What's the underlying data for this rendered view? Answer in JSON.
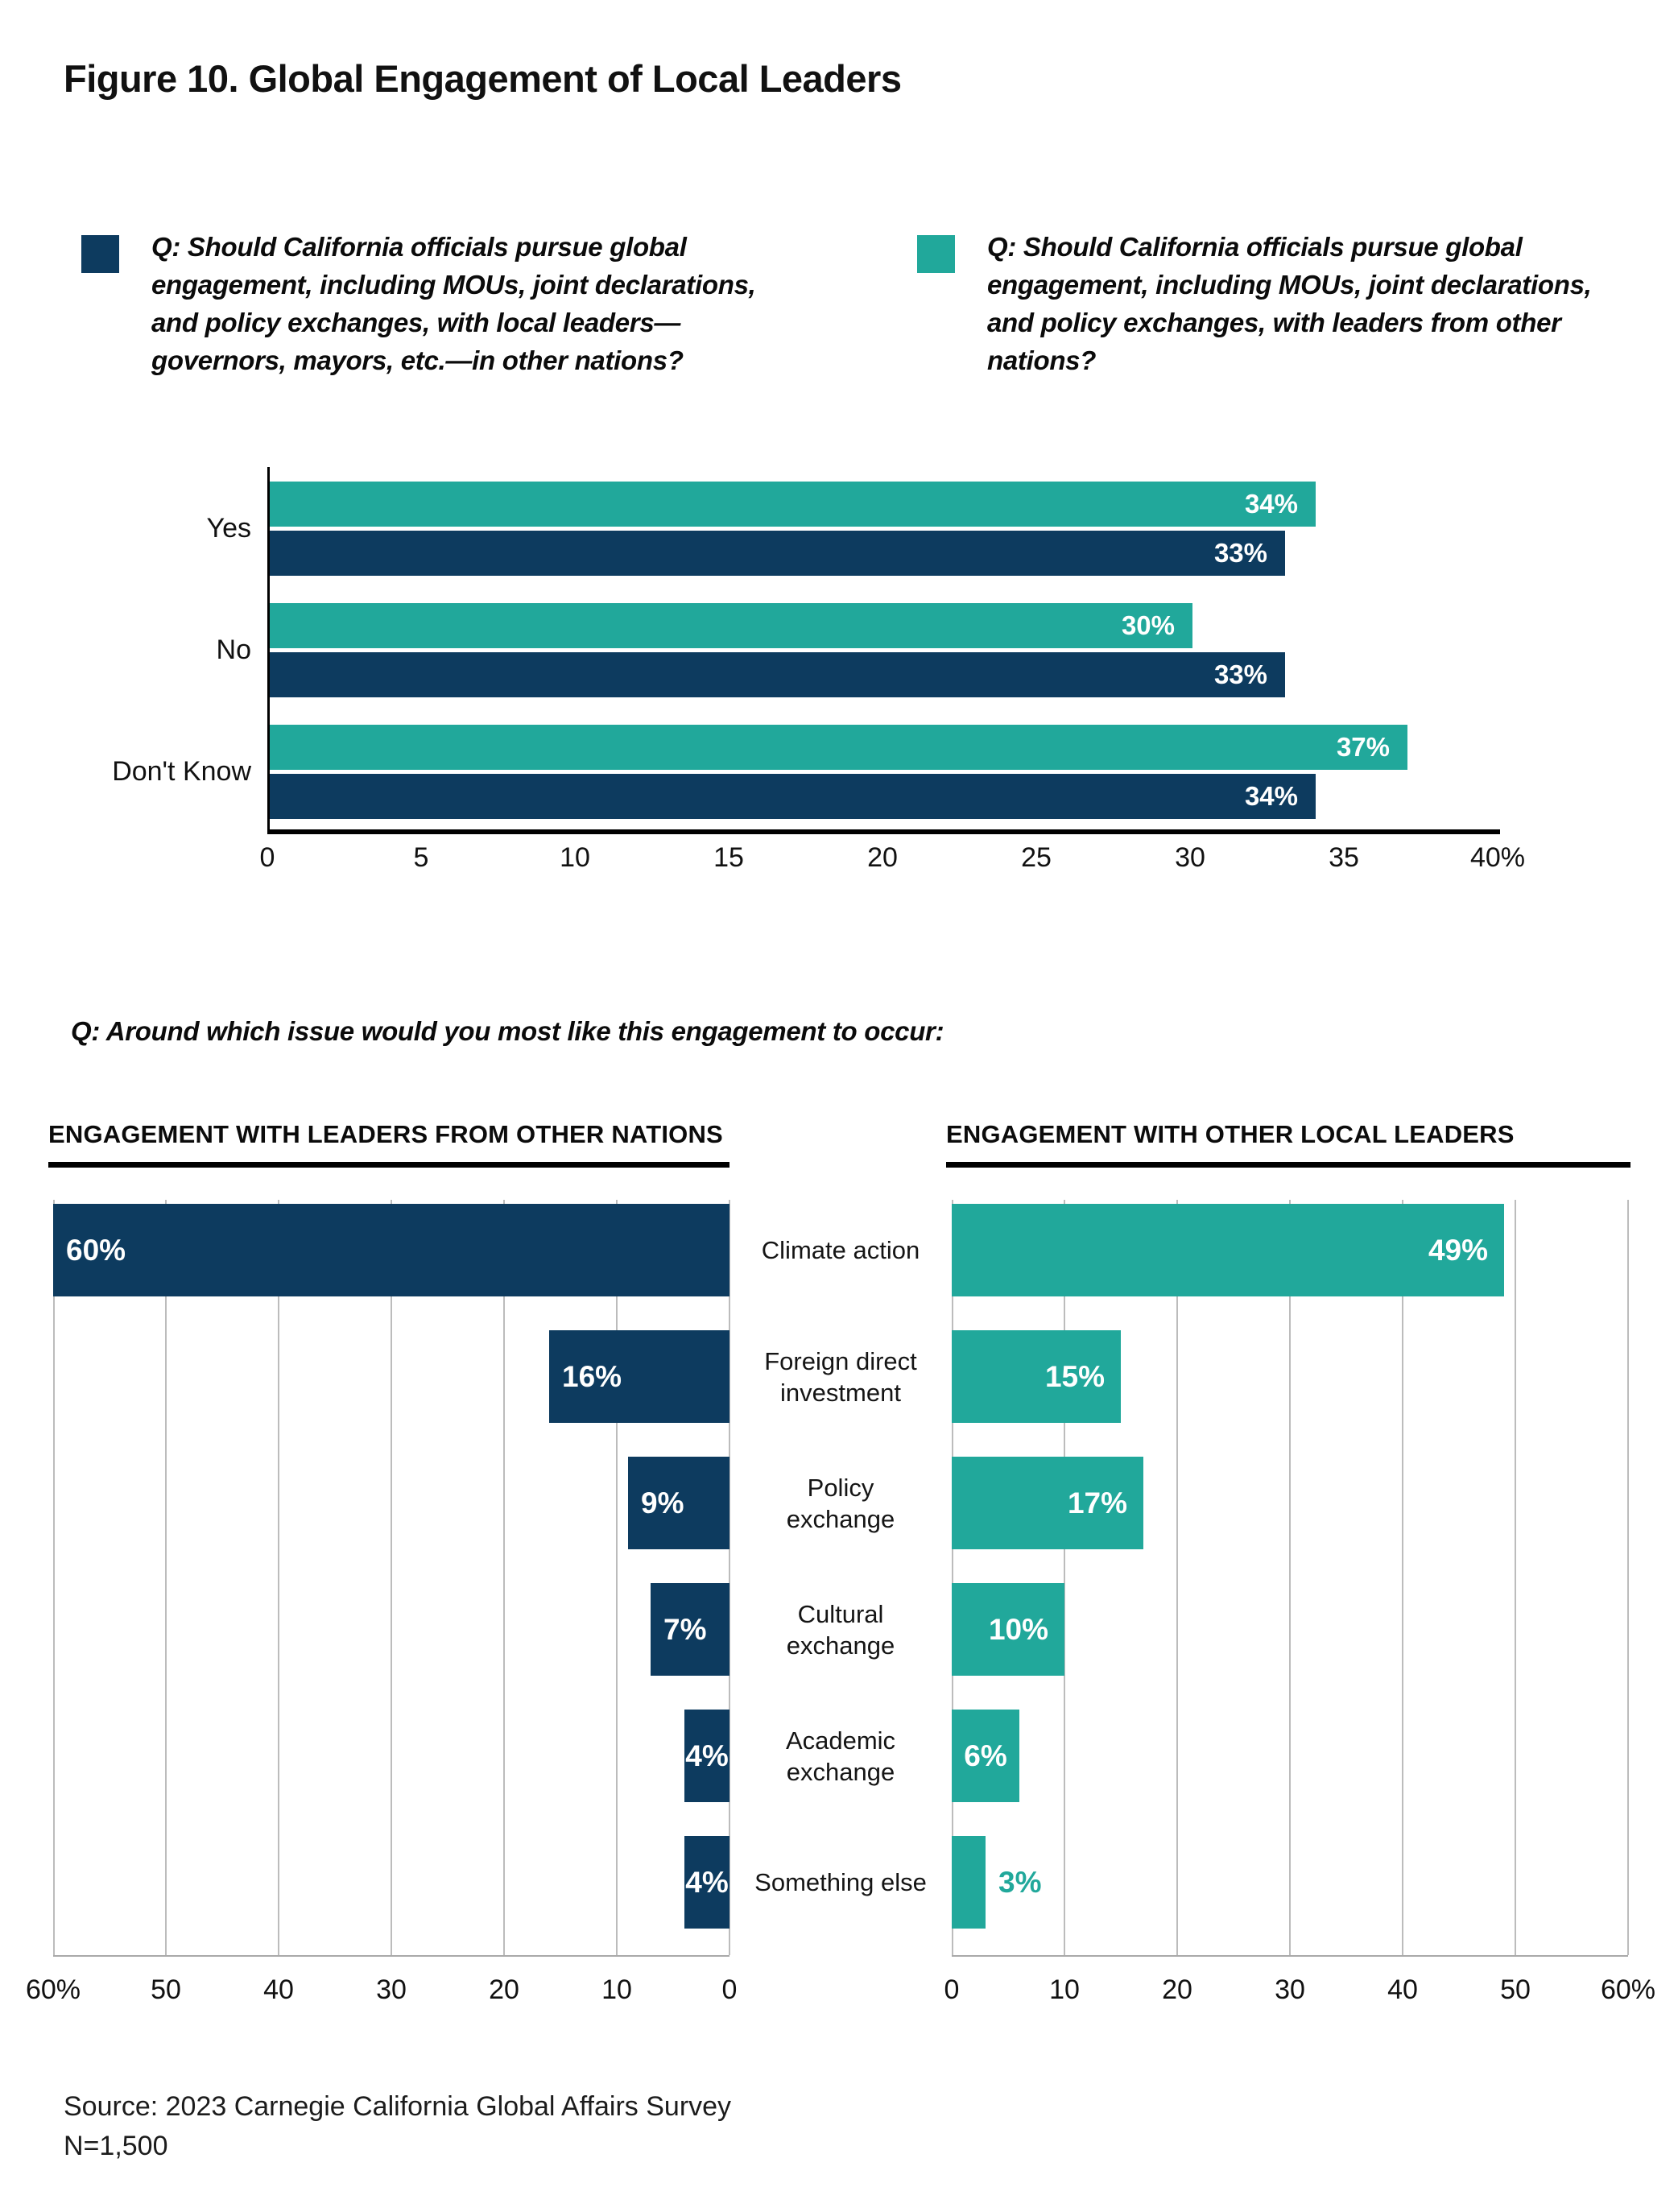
{
  "figure": {
    "title": "Figure 10. Global Engagement of Local Leaders",
    "source_line1": "Source: 2023 Carnegie California Global Affairs Survey",
    "source_line2": "N=1,500"
  },
  "colors": {
    "navy": "#0d3b5f",
    "teal": "#21a89b",
    "gridline": "#bcbcbc",
    "axis": "#000000"
  },
  "legend": [
    {
      "color": "navy",
      "text": "Q: Should California officials pursue global engagement, including MOUs, joint declarations, and policy exchanges, with local leaders—governors, mayors, etc.—in other nations?"
    },
    {
      "color": "teal",
      "text": "Q: Should California officials pursue global engagement, including MOUs, joint declarations, and policy exchanges, with leaders from other nations?"
    }
  ],
  "mid_question": "Q: Around which issue would you most like this engagement to occur:",
  "chart_data": [
    {
      "type": "bar",
      "orientation": "horizontal",
      "title": "",
      "categories": [
        "Yes",
        "No",
        "Don't Know"
      ],
      "series": [
        {
          "name": "Engagement with leaders from other nations",
          "color": "teal",
          "values": [
            34,
            30,
            37
          ]
        },
        {
          "name": "Engagement with local leaders in other nations",
          "color": "navy",
          "values": [
            33,
            33,
            34
          ]
        }
      ],
      "value_suffix": "%",
      "xlim": [
        0,
        40
      ],
      "x_ticks": [
        "0",
        "5",
        "10",
        "15",
        "20",
        "25",
        "30",
        "35",
        "40%"
      ],
      "grid": false,
      "legend_position": "top"
    },
    {
      "type": "bar",
      "orientation": "horizontal",
      "title": "ENGAGEMENT WITH LEADERS FROM OTHER NATIONS",
      "direction": "right-to-left",
      "color": "navy",
      "categories": [
        "Climate action",
        "Foreign direct\ninvestment",
        "Policy\nexchange",
        "Cultural\nexchange",
        "Academic\nexchange",
        "Something else"
      ],
      "values": [
        60,
        16,
        9,
        7,
        4,
        4
      ],
      "value_suffix": "%",
      "xlim": [
        0,
        60
      ],
      "x_ticks": [
        "60%",
        "50",
        "40",
        "30",
        "20",
        "10",
        "0"
      ],
      "grid": true
    },
    {
      "type": "bar",
      "orientation": "horizontal",
      "title": "ENGAGEMENT WITH OTHER LOCAL LEADERS",
      "direction": "left-to-right",
      "color": "teal",
      "categories": [
        "Climate action",
        "Foreign direct\ninvestment",
        "Policy\nexchange",
        "Cultural\nexchange",
        "Academic\nexchange",
        "Something else"
      ],
      "values": [
        49,
        15,
        17,
        10,
        6,
        3
      ],
      "value_suffix": "%",
      "xlim": [
        0,
        60
      ],
      "x_ticks": [
        "0",
        "10",
        "20",
        "30",
        "40",
        "50",
        "60%"
      ],
      "grid": true
    }
  ]
}
